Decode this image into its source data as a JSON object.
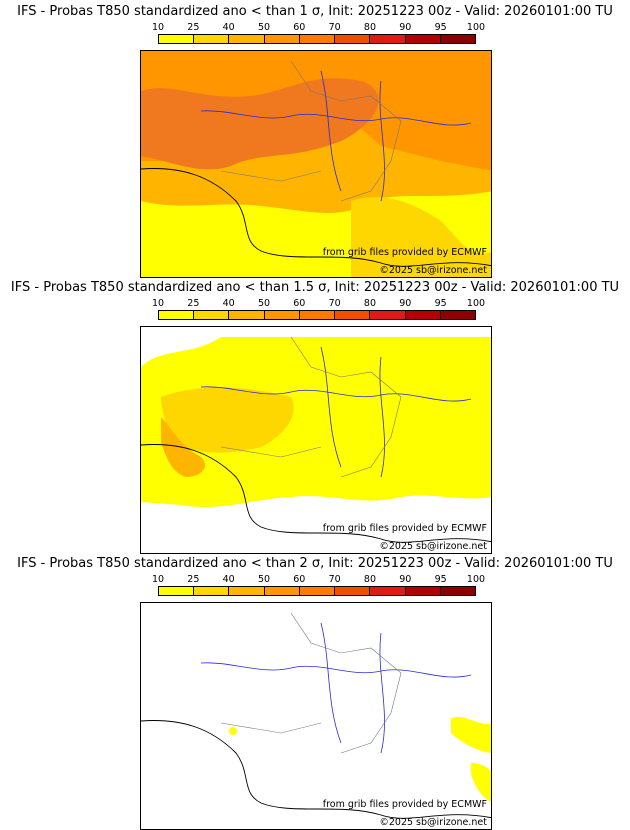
{
  "colorbar": {
    "ticks": [
      "10",
      "25",
      "40",
      "50",
      "60",
      "70",
      "80",
      "90",
      "95",
      "100"
    ],
    "colors": [
      "#ffff00",
      "#ffd700",
      "#ffb400",
      "#ff9600",
      "#ff7a00",
      "#f04f00",
      "#e01a14",
      "#b40000",
      "#8c0000"
    ]
  },
  "panels": [
    {
      "title": "IFS - Probas T850  standardized ano < than 1 σ, Init: 20251223 00z - Valid: 20260101:00 TU",
      "credit1": "from grib files provided by ECMWF",
      "credit2": "©2025 sb@irizone.net"
    },
    {
      "title": "IFS - Probas T850  standardized ano < than 1.5 σ, Init: 20251223 00z - Valid: 20260101:00 TU",
      "credit1": "from grib files provided by ECMWF",
      "credit2": "©2025 sb@irizone.net"
    },
    {
      "title": "IFS - Probas T850  standardized ano < than 2 σ, Init: 20251223 00z - Valid: 20260101:00 TU",
      "credit1": "from grib files provided by ECMWF",
      "credit2": "©2025 sb@irizone.net"
    }
  ],
  "colors": {
    "coast": "#000000",
    "rivers": "#2a2ad8",
    "borders": "#9a9a9a",
    "low": "#ffff00",
    "mid": "#ffb400",
    "high": "#ff7a00"
  }
}
